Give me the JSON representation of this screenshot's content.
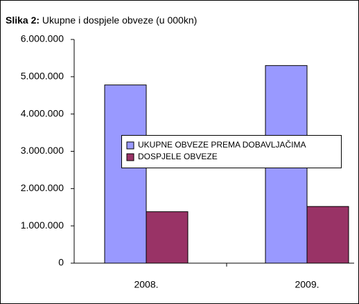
{
  "chart_data": {
    "type": "bar",
    "title_prefix": "Slika 2:",
    "title": "Ukupne i dospjele obveze (u 000kn)",
    "categories": [
      "2008.",
      "2009."
    ],
    "series": [
      {
        "name": "UKUPNE OBVEZE PREMA DOBAVLJAČIMA",
        "color": "#9999ff",
        "values": [
          4780000,
          5300000
        ]
      },
      {
        "name": "DOSPJELE OBVEZE",
        "color": "#993366",
        "values": [
          1380000,
          1520000
        ]
      }
    ],
    "ylim": [
      0,
      6000000
    ],
    "yticks": [
      {
        "value": 0,
        "label": "0"
      },
      {
        "value": 1000000,
        "label": "1.000.000"
      },
      {
        "value": 2000000,
        "label": "2.000.000"
      },
      {
        "value": 3000000,
        "label": "3.000.000"
      },
      {
        "value": 4000000,
        "label": "4.000.000"
      },
      {
        "value": 5000000,
        "label": "5.000.000"
      },
      {
        "value": 6000000,
        "label": "6.000.000"
      }
    ],
    "grid": false,
    "legend": "center"
  }
}
